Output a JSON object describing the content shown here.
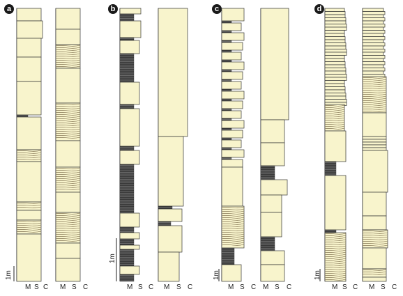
{
  "panels": [
    {
      "letter": "a",
      "axis": [
        "M",
        "S",
        "C"
      ]
    },
    {
      "letter": "b",
      "axis": [
        "M",
        "S",
        "C"
      ]
    },
    {
      "letter": "c",
      "axis": [
        "M",
        "S",
        "C"
      ]
    },
    {
      "letter": "d",
      "axis": [
        "M",
        "S",
        "C"
      ]
    }
  ],
  "scale_label": "1m",
  "colors": {
    "sand": "#f8f4cc",
    "mud": "#3a3a3a",
    "line": "#333333",
    "lamina": "#6b5a3a"
  }
}
